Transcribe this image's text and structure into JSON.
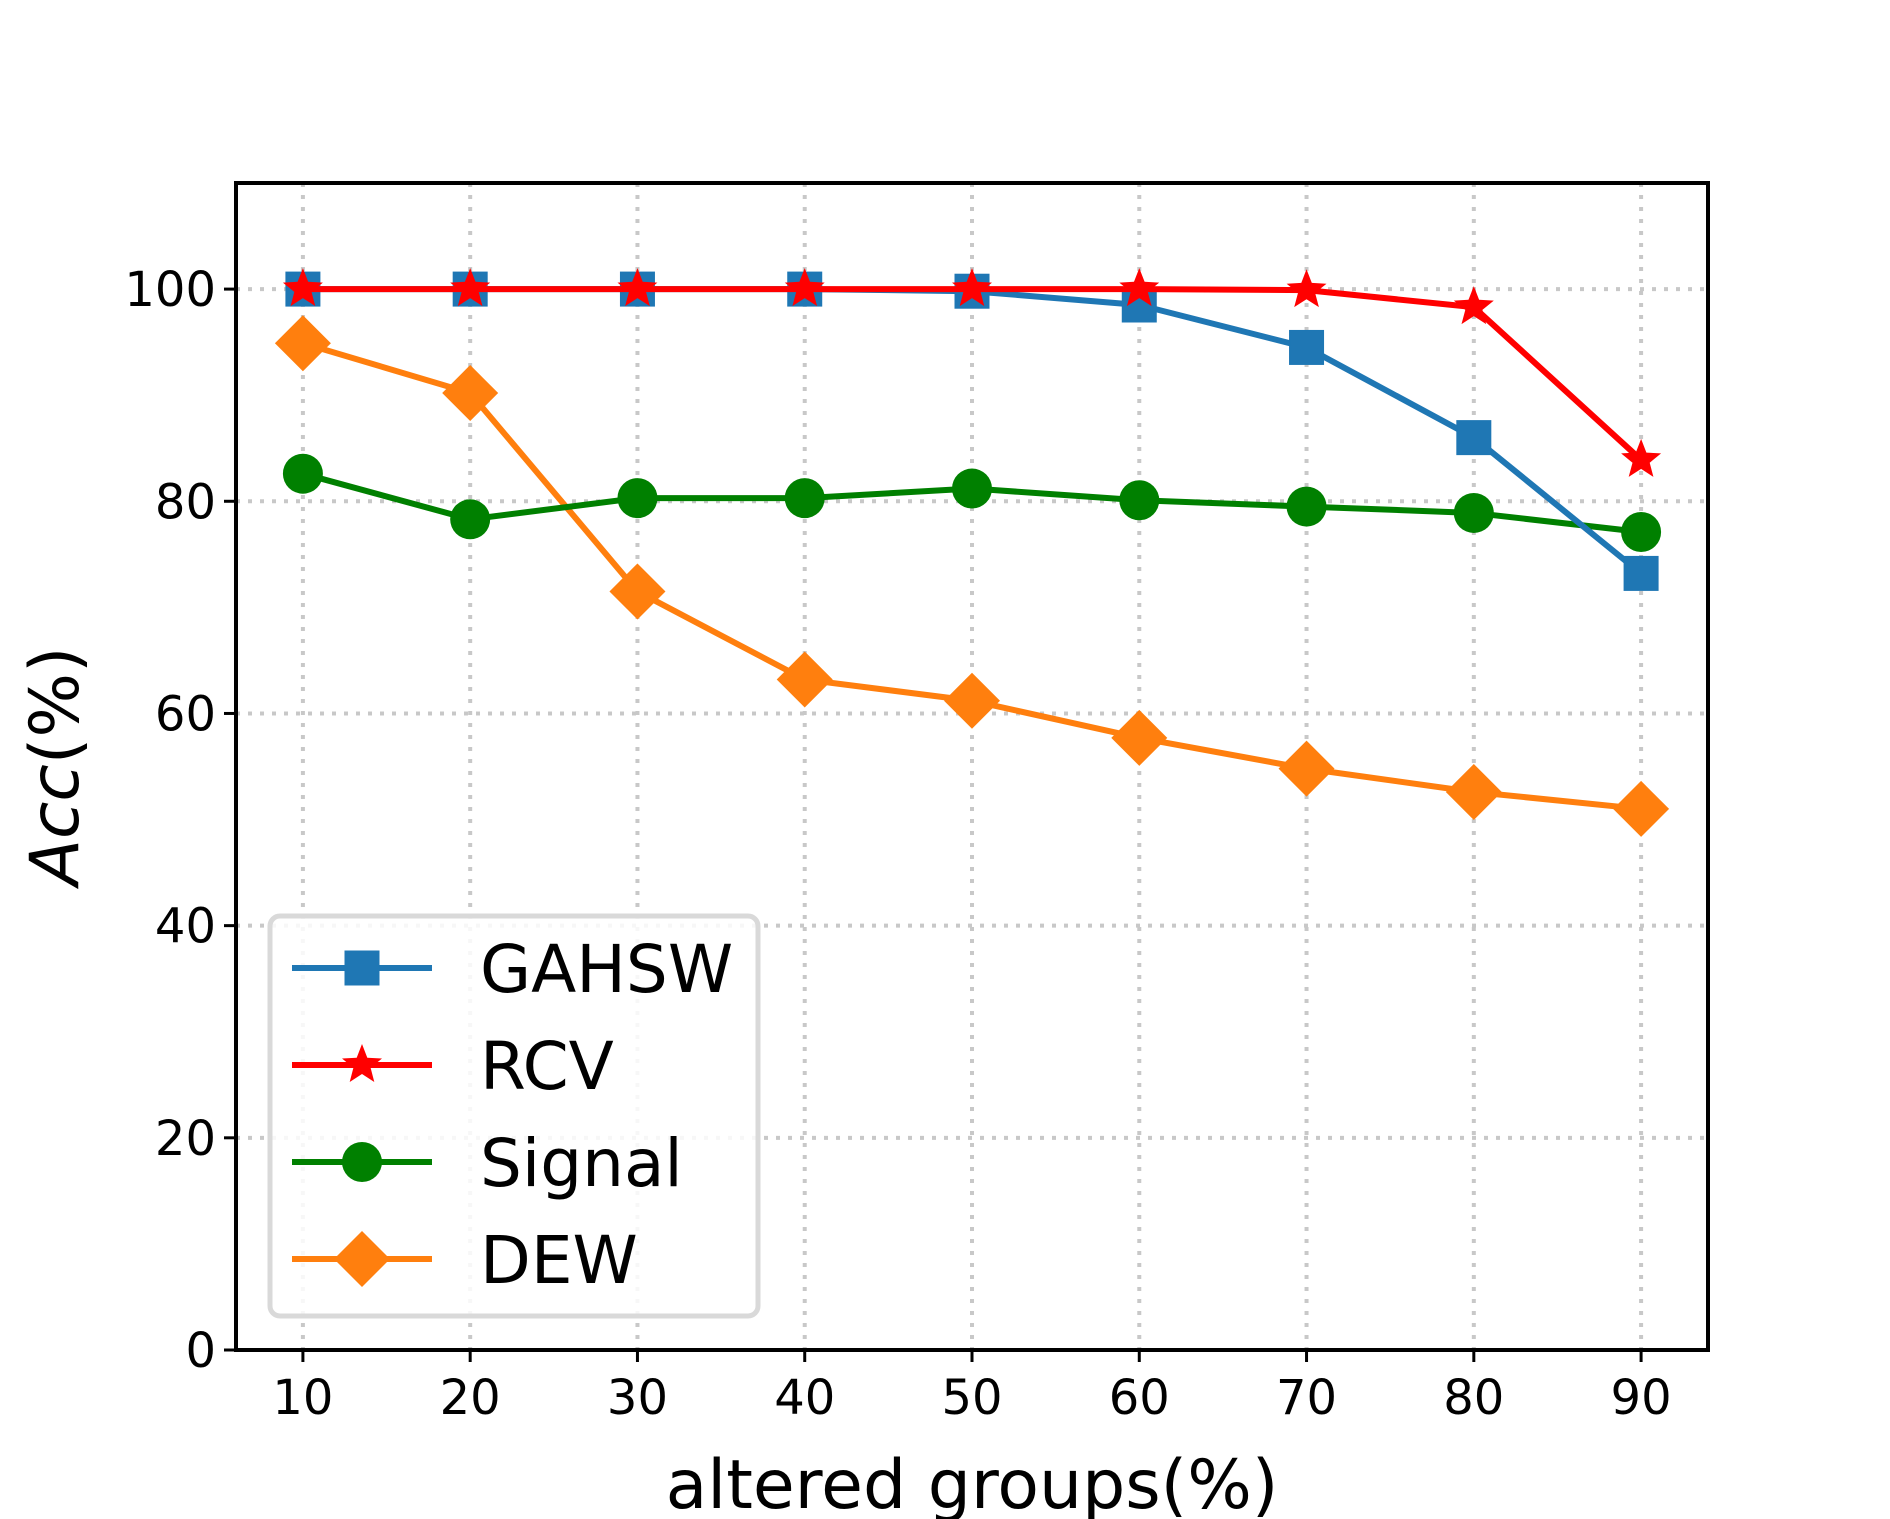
{
  "chart_data": {
    "type": "line",
    "title": "",
    "xlabel": "altered groups(%)",
    "ylabel_italic": "Acc",
    "ylabel_suffix": "(%)",
    "x": [
      10,
      20,
      30,
      40,
      50,
      60,
      70,
      80,
      90
    ],
    "xlim": [
      6,
      94
    ],
    "ylim": [
      0,
      110
    ],
    "xticks": [
      10,
      20,
      30,
      40,
      50,
      60,
      70,
      80,
      90
    ],
    "yticks": [
      0,
      20,
      40,
      60,
      80,
      100
    ],
    "grid": true,
    "legend_position": "lower-left",
    "series": [
      {
        "name": "GAHSW",
        "color": "#1f77b4",
        "marker": "square",
        "values": [
          100,
          100,
          100,
          100,
          99.8,
          98.5,
          94.5,
          86.0,
          73.2
        ]
      },
      {
        "name": "RCV",
        "color": "#ff0000",
        "marker": "star",
        "values": [
          100,
          100,
          100,
          100,
          100,
          100,
          99.9,
          98.3,
          83.9
        ]
      },
      {
        "name": "Signal",
        "color": "#008000",
        "marker": "circle",
        "values": [
          82.6,
          78.3,
          80.3,
          80.3,
          81.2,
          80.1,
          79.5,
          78.9,
          77.1
        ]
      },
      {
        "name": "DEW",
        "color": "#ff7f0e",
        "marker": "diamond",
        "values": [
          94.9,
          90.2,
          71.5,
          63.2,
          61.2,
          57.7,
          54.8,
          52.6,
          51.0
        ]
      }
    ]
  }
}
